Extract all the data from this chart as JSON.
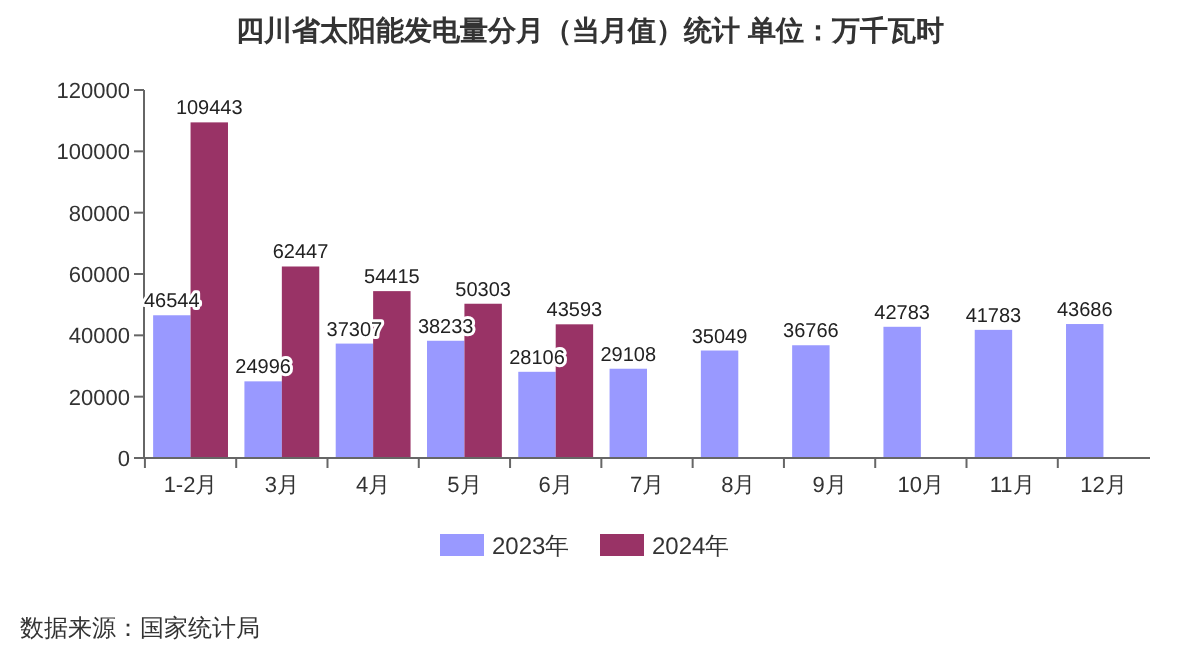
{
  "chart_data": {
    "type": "bar",
    "title": "四川省太阳能发电量分月（当月值）统计  单位：万千瓦时",
    "categories": [
      "1-2月",
      "3月",
      "4月",
      "5月",
      "6月",
      "7月",
      "8月",
      "9月",
      "10月",
      "11月",
      "12月"
    ],
    "series": [
      {
        "name": "2023年",
        "color": "#9999ff",
        "values": [
          46544,
          24996,
          37307,
          38233,
          28106,
          29108,
          35049,
          36766,
          42783,
          41783,
          43686
        ]
      },
      {
        "name": "2024年",
        "color": "#993366",
        "values": [
          109443,
          62447,
          54415,
          50303,
          43593,
          null,
          null,
          null,
          null,
          null,
          null
        ]
      }
    ],
    "ylim": [
      0,
      120000
    ],
    "yticks": [
      0,
      20000,
      40000,
      60000,
      80000,
      100000,
      120000
    ],
    "data_labels": true,
    "legend": "bottom",
    "grid": false,
    "annotations": [
      "数据来源：国家统计局"
    ]
  }
}
